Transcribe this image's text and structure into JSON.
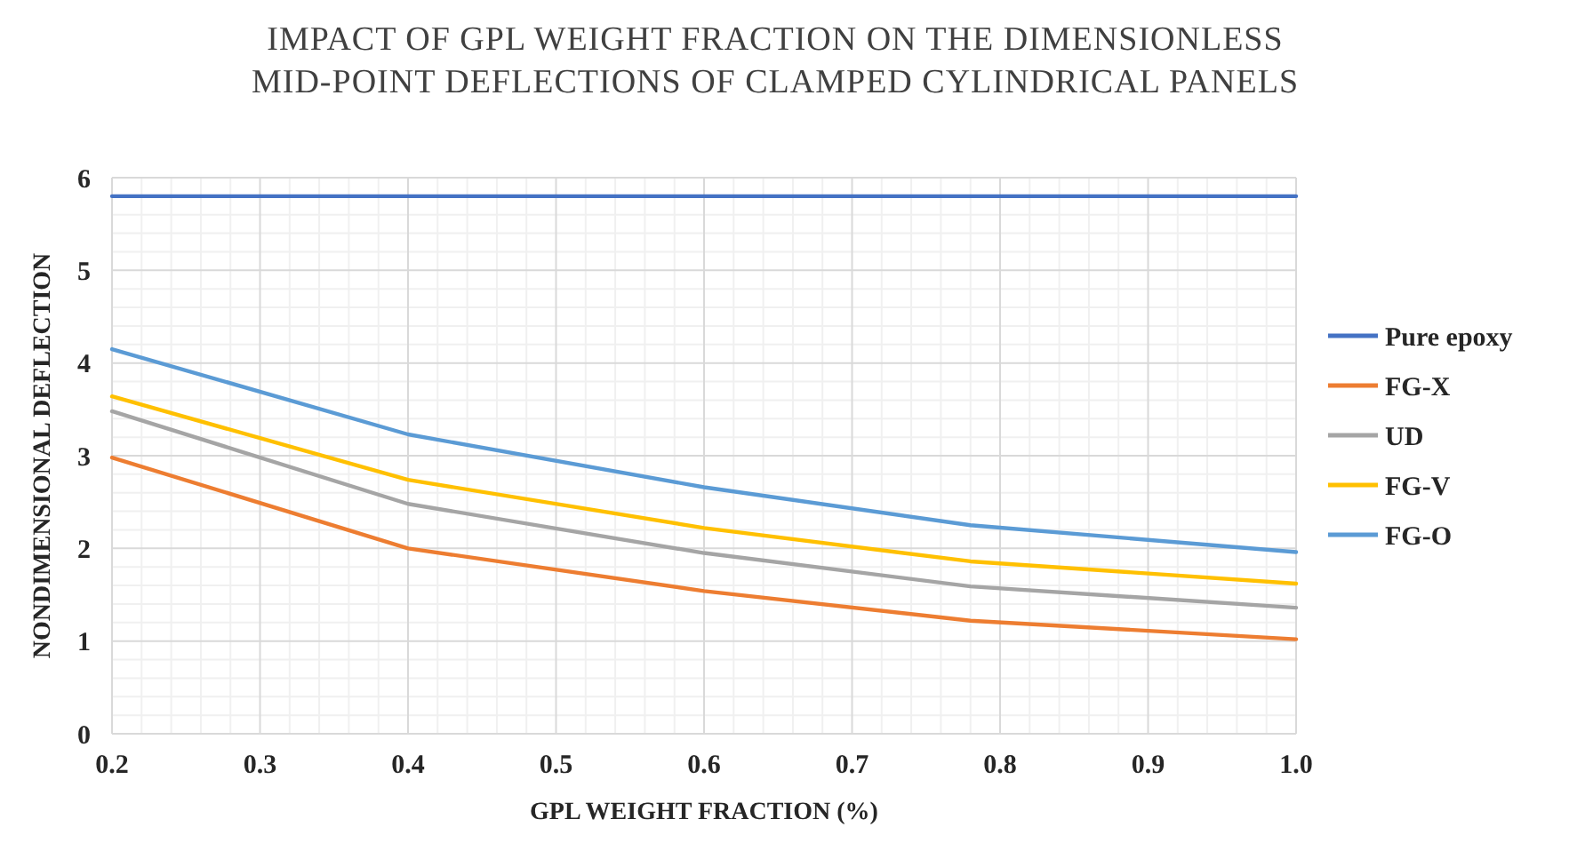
{
  "chart_data": {
    "type": "line",
    "title": "IMPACT OF GPL WEIGHT FRACTION ON THE DIMENSIONLESS MID-POINT DEFLECTIONS OF CLAMPED CYLINDRICAL PANELS",
    "xlabel": "GPL WEIGHT FRACTION (%)",
    "ylabel": "NONDIMENSIONAL DEFLECTION",
    "x": [
      0.2,
      0.4,
      0.6,
      0.78,
      1.0
    ],
    "series": [
      {
        "name": "Pure epoxy",
        "color": "#4472c4",
        "values": [
          5.8,
          5.8,
          5.8,
          5.8,
          5.8
        ]
      },
      {
        "name": "FG-X",
        "color": "#ed7d31",
        "values": [
          2.98,
          2.0,
          1.54,
          1.22,
          1.02
        ]
      },
      {
        "name": "UD",
        "color": "#a5a5a5",
        "values": [
          3.48,
          2.48,
          1.95,
          1.59,
          1.36
        ]
      },
      {
        "name": "FG-V",
        "color": "#ffc000",
        "values": [
          3.64,
          2.74,
          2.22,
          1.86,
          1.62
        ]
      },
      {
        "name": "FG-O",
        "color": "#5b9bd5",
        "values": [
          4.15,
          3.23,
          2.66,
          2.25,
          1.96
        ]
      }
    ],
    "xlim": [
      0.2,
      1.0
    ],
    "xticks": [
      {
        "value": 0.2,
        "label": "0.2"
      },
      {
        "value": 0.3,
        "label": "0.3"
      },
      {
        "value": 0.4,
        "label": "0.4"
      },
      {
        "value": 0.5,
        "label": "0.5"
      },
      {
        "value": 0.6,
        "label": "0.6"
      },
      {
        "value": 0.7,
        "label": "0.7"
      },
      {
        "value": 0.8,
        "label": "0.8"
      },
      {
        "value": 0.9,
        "label": "0.9"
      },
      {
        "value": 1.0,
        "label": "1.0"
      }
    ],
    "ylim": [
      0,
      6
    ],
    "yticks": [
      0,
      1,
      2,
      3,
      4,
      5,
      6
    ],
    "grid": true,
    "legend": "right",
    "marker": "none",
    "line_style": "solid"
  }
}
